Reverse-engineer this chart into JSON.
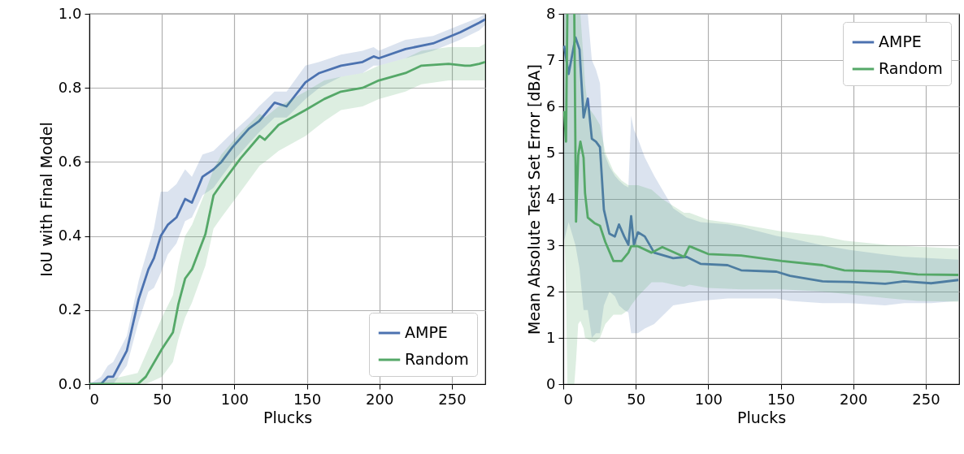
{
  "chart_data": [
    {
      "type": "line",
      "xlabel": "Plucks",
      "ylabel": "IoU with Final Model",
      "xlim": [
        0,
        273
      ],
      "ylim": [
        0,
        1
      ],
      "xticks": [
        0,
        50,
        100,
        150,
        200,
        250
      ],
      "yticks": [
        {
          "value": 0,
          "label": "0.0"
        },
        0.2,
        0.4,
        0.6,
        0.8,
        {
          "value": 1,
          "label": "1.0"
        }
      ],
      "grid": true,
      "legend": "bottom right",
      "series": [
        {
          "name": "AMPE",
          "color": "#4c72b0",
          "x": [
            0,
            8,
            12.7,
            16.4,
            25.8,
            34,
            40.7,
            44.5,
            49.2,
            54,
            60,
            66,
            70.7,
            78,
            85.6,
            91,
            98.7,
            110,
            117,
            127.7,
            136,
            149,
            158.5,
            173.5,
            188.4,
            196,
            199.6,
            218,
            237,
            255.7,
            268.8,
            273
          ],
          "values": [
            0,
            0,
            0.02,
            0.02,
            0.09,
            0.23,
            0.31,
            0.34,
            0.4,
            0.43,
            0.45,
            0.5,
            0.49,
            0.56,
            0.58,
            0.6,
            0.64,
            0.69,
            0.71,
            0.76,
            0.75,
            0.815,
            0.84,
            0.86,
            0.87,
            0.885,
            0.88,
            0.905,
            0.92,
            0.95,
            0.976,
            0.985
          ],
          "lower": [
            0,
            0,
            0,
            0,
            0.05,
            0.17,
            0.25,
            0.26,
            0.3,
            0.35,
            0.38,
            0.44,
            0.45,
            0.51,
            0.53,
            0.56,
            0.6,
            0.65,
            0.68,
            0.72,
            0.72,
            0.77,
            0.8,
            0.83,
            0.84,
            0.86,
            0.86,
            0.88,
            0.9,
            0.93,
            0.955,
            0.97
          ],
          "upper": [
            0,
            0.02,
            0.05,
            0.06,
            0.13,
            0.28,
            0.37,
            0.42,
            0.52,
            0.52,
            0.54,
            0.58,
            0.56,
            0.62,
            0.63,
            0.65,
            0.68,
            0.72,
            0.75,
            0.79,
            0.79,
            0.86,
            0.87,
            0.89,
            0.9,
            0.91,
            0.9,
            0.93,
            0.94,
            0.97,
            0.99,
            1.0
          ]
        },
        {
          "name": "Random",
          "color": "#55a868",
          "x": [
            0,
            33.3,
            38.9,
            50,
            57.6,
            61.3,
            66,
            70.7,
            80,
            85.6,
            91,
            104.3,
            117.4,
            121,
            130.5,
            149,
            162,
            173.5,
            188.4,
            199.6,
            218,
            229,
            247.7,
            259,
            262.6,
            268.8,
            273
          ],
          "values": [
            0,
            0,
            0.02,
            0.095,
            0.14,
            0.215,
            0.285,
            0.31,
            0.405,
            0.51,
            0.54,
            0.61,
            0.67,
            0.66,
            0.7,
            0.74,
            0.77,
            0.79,
            0.8,
            0.82,
            0.84,
            0.86,
            0.865,
            0.86,
            0.86,
            0.865,
            0.87
          ],
          "lower": [
            0,
            0,
            0,
            0.02,
            0.06,
            0.12,
            0.18,
            0.22,
            0.32,
            0.42,
            0.45,
            0.52,
            0.59,
            0.6,
            0.63,
            0.67,
            0.71,
            0.74,
            0.75,
            0.77,
            0.79,
            0.81,
            0.82,
            0.82,
            0.82,
            0.82,
            0.82
          ],
          "upper": [
            0,
            0.03,
            0.08,
            0.18,
            0.24,
            0.32,
            0.4,
            0.43,
            0.52,
            0.58,
            0.62,
            0.68,
            0.73,
            0.72,
            0.75,
            0.79,
            0.82,
            0.83,
            0.84,
            0.86,
            0.88,
            0.9,
            0.91,
            0.91,
            0.91,
            0.91,
            0.92
          ]
        }
      ]
    },
    {
      "type": "line",
      "xlabel": "Plucks",
      "ylabel": "Mean Absolute Test Set Error [dBA]",
      "xlim": [
        0,
        273
      ],
      "ylim": [
        0,
        8
      ],
      "xticks": [
        0,
        50,
        100,
        150,
        200,
        250
      ],
      "yticks": [
        0,
        1,
        2,
        3,
        4,
        5,
        6,
        7,
        8
      ],
      "grid": true,
      "legend": "top right",
      "series": [
        {
          "name": "AMPE",
          "color": "#4c72b0",
          "x": [
            0.6,
            3.7,
            8.4,
            11.2,
            14,
            16.9,
            19.7,
            22.5,
            25.3,
            28,
            31.8,
            35.6,
            38.4,
            42,
            44.9,
            46.8,
            48.7,
            51.5,
            56.2,
            62.7,
            75.8,
            85,
            94.6,
            113.3,
            122.7,
            147,
            156.4,
            178.8,
            197.6,
            222,
            235,
            253.7,
            272.5
          ],
          "values": [
            7.31,
            6.7,
            7.49,
            7.23,
            5.76,
            6.17,
            5.3,
            5.24,
            5.12,
            3.77,
            3.25,
            3.19,
            3.45,
            3.19,
            3.01,
            3.63,
            3.01,
            3.28,
            3.19,
            2.84,
            2.72,
            2.75,
            2.6,
            2.57,
            2.46,
            2.43,
            2.34,
            2.22,
            2.21,
            2.17,
            2.22,
            2.18,
            2.25
          ],
          "lower": [
            3.1,
            3.5,
            3.0,
            2.5,
            1.6,
            1.6,
            1.0,
            1.1,
            1.1,
            1.7,
            2.0,
            1.9,
            1.7,
            1.6,
            1.55,
            1.1,
            1.1,
            1.1,
            1.2,
            1.3,
            1.7,
            1.75,
            1.8,
            1.85,
            1.85,
            1.85,
            1.8,
            1.75,
            1.75,
            1.7,
            1.75,
            1.75,
            1.8
          ],
          "upper": [
            8,
            8,
            8,
            8,
            8,
            8,
            7.0,
            6.8,
            6.5,
            5.0,
            4.7,
            4.5,
            4.4,
            4.3,
            4.25,
            5.8,
            5.5,
            5.3,
            4.9,
            4.5,
            3.8,
            3.6,
            3.5,
            3.45,
            3.4,
            3.2,
            3.15,
            3.0,
            2.9,
            2.8,
            2.75,
            2.72,
            2.69
          ]
        },
        {
          "name": "Random",
          "color": "#55a868",
          "x": [
            0.6,
            1.9,
            2.8,
            5,
            7.6,
            8.8,
            10.3,
            11.8,
            14,
            15,
            16.9,
            21.5,
            25.3,
            29,
            34.6,
            40.2,
            44.9,
            46.8,
            51.5,
            60.9,
            68.3,
            83.3,
            87,
            100,
            122.7,
            150.8,
            178.8,
            193.8,
            225.6,
            244.4,
            272.5
          ],
          "values": [
            5.9,
            5.24,
            8,
            null,
            8,
            3.51,
            4.94,
            5.24,
            4.89,
            4.13,
            3.6,
            3.48,
            3.42,
            3.07,
            2.66,
            2.66,
            2.84,
            2.98,
            2.98,
            2.84,
            2.96,
            2.75,
            2.98,
            2.81,
            2.78,
            2.66,
            2.57,
            2.46,
            2.43,
            2.37,
            2.36
          ],
          "lower": [
            3.5,
            2.0,
            0,
            0,
            0,
            0.5,
            1.3,
            1.37,
            1.2,
            1.0,
            0.97,
            0.9,
            1.0,
            1.3,
            1.5,
            1.5,
            1.6,
            1.7,
            1.9,
            2.2,
            2.2,
            2.1,
            2.15,
            2.08,
            2.05,
            2.05,
            2.0,
            1.95,
            1.85,
            1.8,
            1.78
          ],
          "upper": [
            8,
            8,
            8,
            8,
            8,
            8,
            8,
            8,
            7,
            6.5,
            6,
            5.8,
            5.6,
            5,
            4.6,
            4.4,
            4.3,
            4.3,
            4.3,
            4.2,
            4.0,
            3.7,
            3.7,
            3.55,
            3.45,
            3.3,
            3.2,
            3.1,
            3.0,
            2.97,
            2.93
          ]
        }
      ]
    }
  ]
}
